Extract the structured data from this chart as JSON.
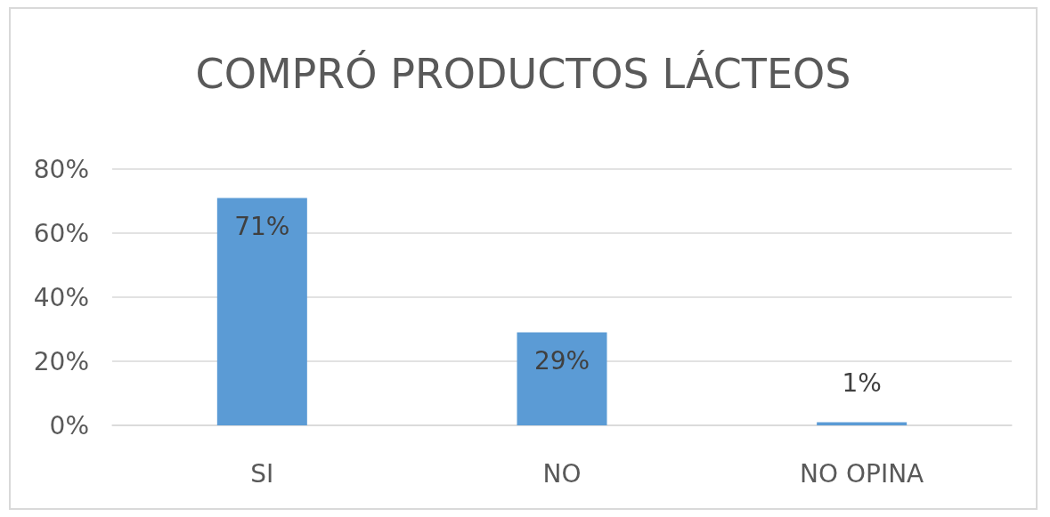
{
  "chart_data": {
    "type": "bar",
    "title": "COMPRÓ PRODUCTOS LÁCTEOS",
    "categories": [
      "SI",
      "NO",
      "NO OPINA"
    ],
    "values": [
      71,
      29,
      1
    ],
    "value_labels": [
      "71%",
      "29%",
      "1%"
    ],
    "color": "#5b9bd5",
    "ylim": [
      0,
      80
    ],
    "yticks": [
      {
        "value": 0,
        "label": "0%"
      },
      {
        "value": 20,
        "label": "20%"
      },
      {
        "value": 40,
        "label": "40%"
      },
      {
        "value": 60,
        "label": "60%"
      },
      {
        "value": 80,
        "label": "80%"
      }
    ],
    "grid": "y"
  }
}
